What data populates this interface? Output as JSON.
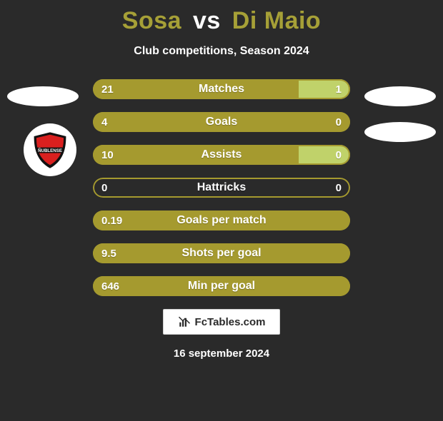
{
  "title": {
    "player1": "Sosa",
    "vs": "vs",
    "player2": "Di Maio"
  },
  "subtitle": "Club competitions, Season 2024",
  "colors": {
    "left_fill": "#a59a2f",
    "right_fill": "#c0d26a",
    "border": "#a59a2f",
    "background": "#2a2a2a",
    "title_accent": "#a6a037"
  },
  "rows": [
    {
      "label": "Matches",
      "left": "21",
      "right": "1",
      "left_pct": 80,
      "right_pct": 20,
      "show_right": true
    },
    {
      "label": "Goals",
      "left": "4",
      "right": "0",
      "left_pct": 100,
      "right_pct": 0,
      "show_right": true
    },
    {
      "label": "Assists",
      "left": "10",
      "right": "0",
      "left_pct": 80,
      "right_pct": 20,
      "show_right": true
    },
    {
      "label": "Hattricks",
      "left": "0",
      "right": "0",
      "left_pct": 0,
      "right_pct": 0,
      "show_right": true
    },
    {
      "label": "Goals per match",
      "left": "0.19",
      "right": "",
      "left_pct": 100,
      "right_pct": 0,
      "show_right": false
    },
    {
      "label": "Shots per goal",
      "left": "9.5",
      "right": "",
      "left_pct": 100,
      "right_pct": 0,
      "show_right": false
    },
    {
      "label": "Min per goal",
      "left": "646",
      "right": "",
      "left_pct": 100,
      "right_pct": 0,
      "show_right": false
    }
  ],
  "club": {
    "name": "ÑUBLENSE",
    "shield_red": "#d9201f",
    "shield_black": "#111111"
  },
  "branding": {
    "label": "FcTables.com"
  },
  "date": "16 september 2024"
}
